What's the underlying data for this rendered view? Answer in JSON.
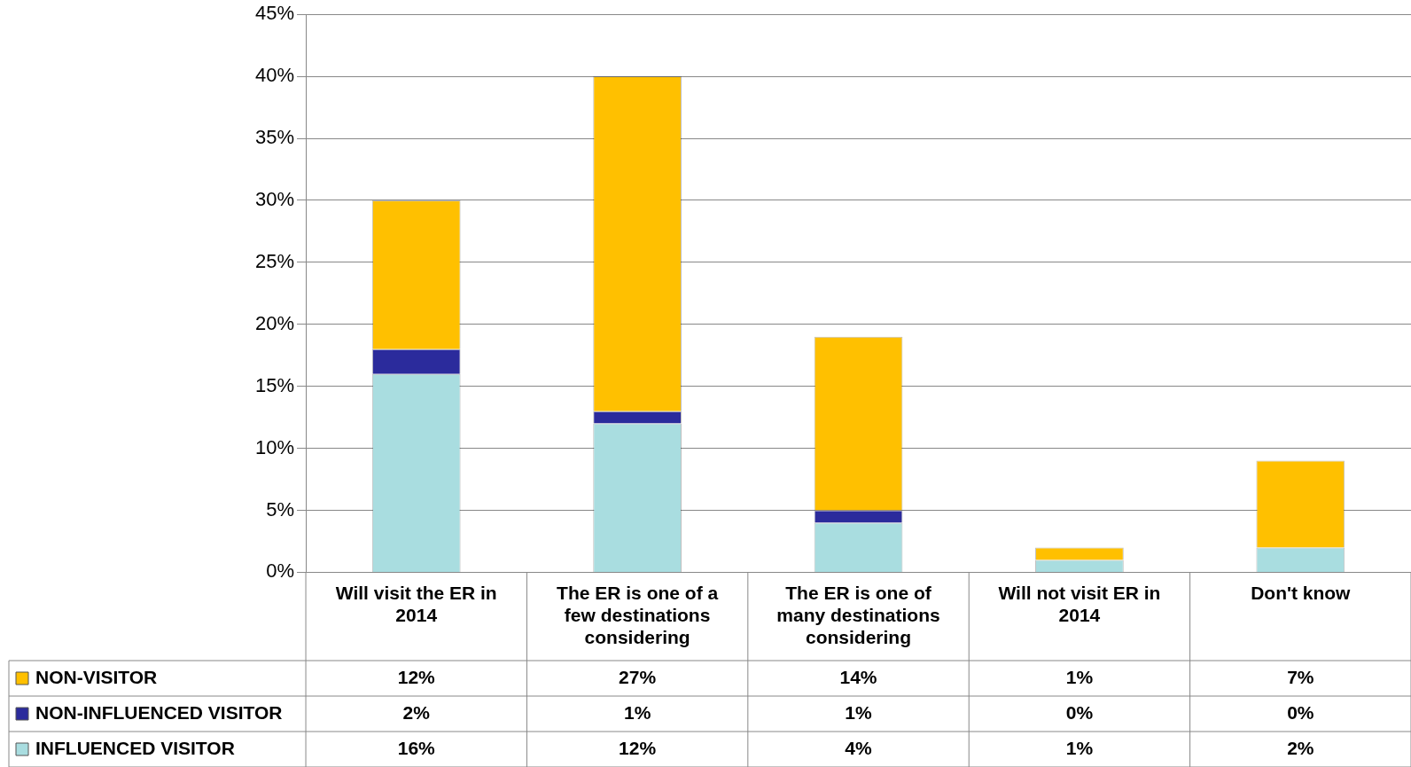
{
  "chart_data": {
    "type": "bar",
    "stacked": true,
    "categories": [
      "Will visit the ER in 2014",
      "The ER is one of a few destinations considering",
      "The ER is one of many destinations considering",
      "Will not visit ER in 2014",
      "Don't know"
    ],
    "series": [
      {
        "name": "INFLUENCED VISITOR",
        "color": "#a9dde0",
        "values": [
          16,
          12,
          4,
          1,
          2
        ],
        "value_labels": [
          "16%",
          "12%",
          "4%",
          "1%",
          "2%"
        ]
      },
      {
        "name": "NON-INFLUENCED VISITOR",
        "color": "#2b2b9c",
        "values": [
          2,
          1,
          1,
          0,
          0
        ],
        "value_labels": [
          "2%",
          "1%",
          "1%",
          "0%",
          "0%"
        ]
      },
      {
        "name": "NON-VISITOR",
        "color": "#ffc000",
        "values": [
          12,
          27,
          14,
          1,
          7
        ],
        "value_labels": [
          "12%",
          "27%",
          "14%",
          "1%",
          "7%"
        ]
      }
    ],
    "ylim": [
      0,
      45
    ],
    "yticks": [
      {
        "value": 0,
        "label": "0%"
      },
      {
        "value": 5,
        "label": "5%"
      },
      {
        "value": 10,
        "label": "10%"
      },
      {
        "value": 15,
        "label": "15%"
      },
      {
        "value": 20,
        "label": "20%"
      },
      {
        "value": 25,
        "label": "25%"
      },
      {
        "value": 30,
        "label": "30%"
      },
      {
        "value": 35,
        "label": "35%"
      },
      {
        "value": 40,
        "label": "40%"
      },
      {
        "value": 45,
        "label": "45%"
      }
    ],
    "grid": "y",
    "legend": "bottom left"
  }
}
